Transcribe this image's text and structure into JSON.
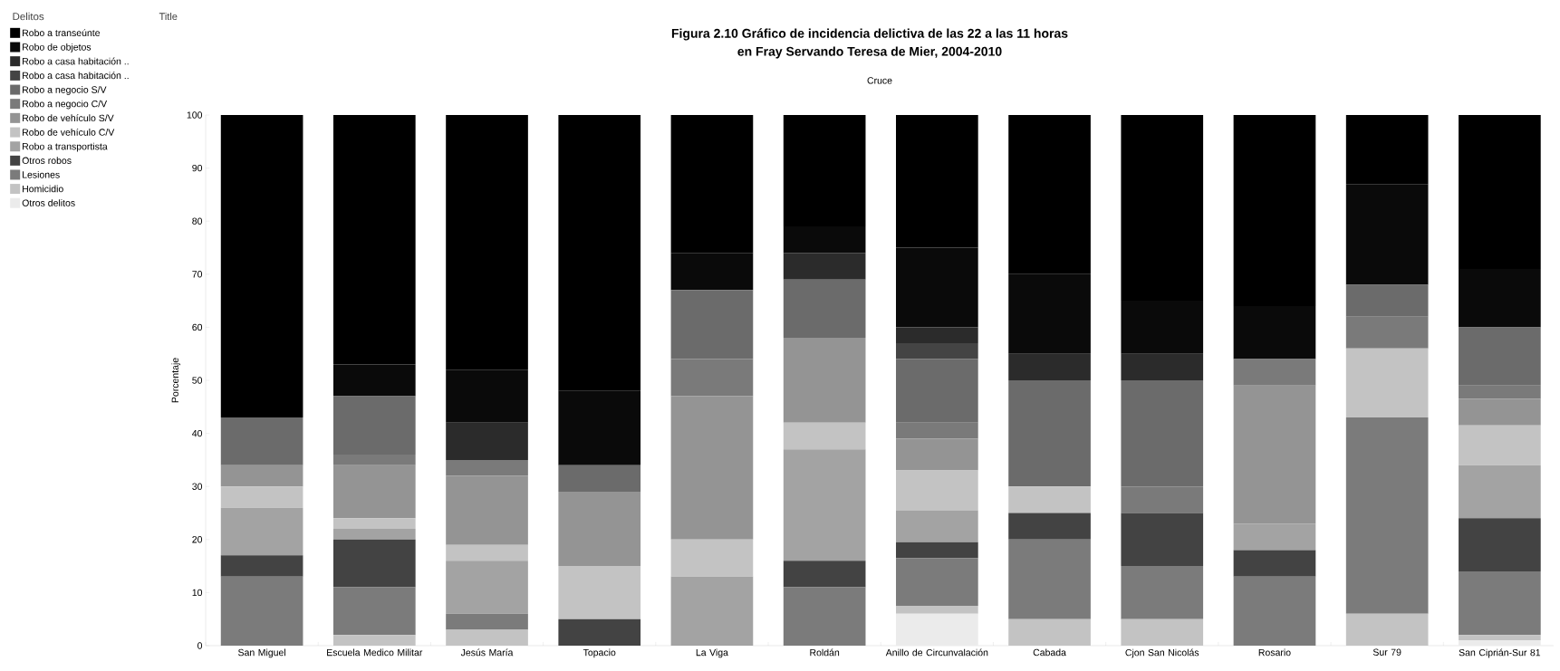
{
  "chart_data": {
    "type": "bar",
    "stacked": true,
    "title": "Figura 2.10 Gráfico de incidencia delictiva de las 22 a las 11 horas",
    "subtitle": "en Fray Servando Teresa de Mier, 2004-2010",
    "xlabel": "Cruce",
    "ylabel": "Porcentaje",
    "legend_title": "Delitos",
    "annotations": [
      "Title"
    ],
    "categories": [
      "San Miguel",
      "Escuela Medico Militar",
      "Jesús María",
      "Topacio",
      "La Viga",
      "Roldán",
      "Anillo de Circunvalación",
      "Cabada",
      "Cjon San Nicolás",
      "Rosario",
      "Sur 79",
      "San Ciprián-Sur 81"
    ],
    "ylim": [
      0,
      100
    ],
    "yticks": [
      0,
      10,
      20,
      30,
      40,
      50,
      60,
      70,
      80,
      90,
      100
    ],
    "legend": "left",
    "series": [
      {
        "name": "Otros delitos",
        "color": "#ebebeb",
        "values": [
          0,
          0,
          0,
          0,
          0,
          0,
          6,
          0,
          0,
          0,
          0,
          1
        ]
      },
      {
        "name": "Homicidio",
        "color": "#c3c3c3",
        "values": [
          0,
          2,
          3,
          0,
          0,
          0,
          1.5,
          5,
          5,
          0,
          6,
          1
        ]
      },
      {
        "name": "Lesiones",
        "color": "#7b7b7b",
        "values": [
          13,
          9,
          3,
          0,
          0,
          11,
          9,
          15,
          10,
          13,
          37,
          12
        ]
      },
      {
        "name": "Otros robos",
        "color": "#434343",
        "values": [
          4,
          9,
          0,
          5,
          0,
          5,
          3,
          5,
          10,
          5,
          0,
          10
        ]
      },
      {
        "name": "Robo a transportista",
        "color": "#a3a3a3",
        "values": [
          9,
          2,
          10,
          0,
          13,
          21,
          6,
          0,
          0,
          5,
          0,
          10
        ]
      },
      {
        "name": "Robo de vehículo C/V",
        "color": "#c3c3c3",
        "values": [
          4,
          2,
          3,
          10,
          7,
          5,
          7.5,
          5,
          0,
          0,
          13,
          7.5
        ]
      },
      {
        "name": "Robo de vehículo S/V",
        "color": "#949494",
        "values": [
          4,
          10,
          13,
          14,
          27,
          16,
          6,
          0,
          0,
          26,
          0,
          5
        ]
      },
      {
        "name": "Robo a negocio C/V",
        "color": "#7a7a7a",
        "values": [
          0,
          2,
          3,
          0,
          7,
          0,
          3,
          0,
          5,
          5,
          6,
          2.5
        ]
      },
      {
        "name": "Robo a negocio S/V",
        "color": "#6b6b6b",
        "values": [
          9,
          11,
          0,
          5,
          13,
          11,
          12,
          20,
          20,
          0,
          6,
          11
        ]
      },
      {
        "name": "Robo a casa habitación ..",
        "color": "#444444",
        "values": [
          0,
          0,
          0,
          0,
          0,
          0,
          3,
          0,
          0,
          0,
          0,
          0
        ]
      },
      {
        "name": "Robo a casa habitación ..",
        "color": "#2b2b2b",
        "values": [
          0,
          0,
          7,
          0,
          0,
          5,
          3,
          5,
          5,
          0,
          0,
          0
        ]
      },
      {
        "name": "Robo de objetos",
        "color": "#0a0a0a",
        "values": [
          0,
          6,
          10,
          14,
          7,
          5,
          15,
          15,
          10,
          10,
          19,
          11
        ]
      },
      {
        "name": "Robo a transeúnte",
        "color": "#000000",
        "values": [
          57,
          47,
          48,
          52,
          26,
          21,
          25,
          30,
          35,
          36,
          13,
          29
        ]
      }
    ]
  }
}
